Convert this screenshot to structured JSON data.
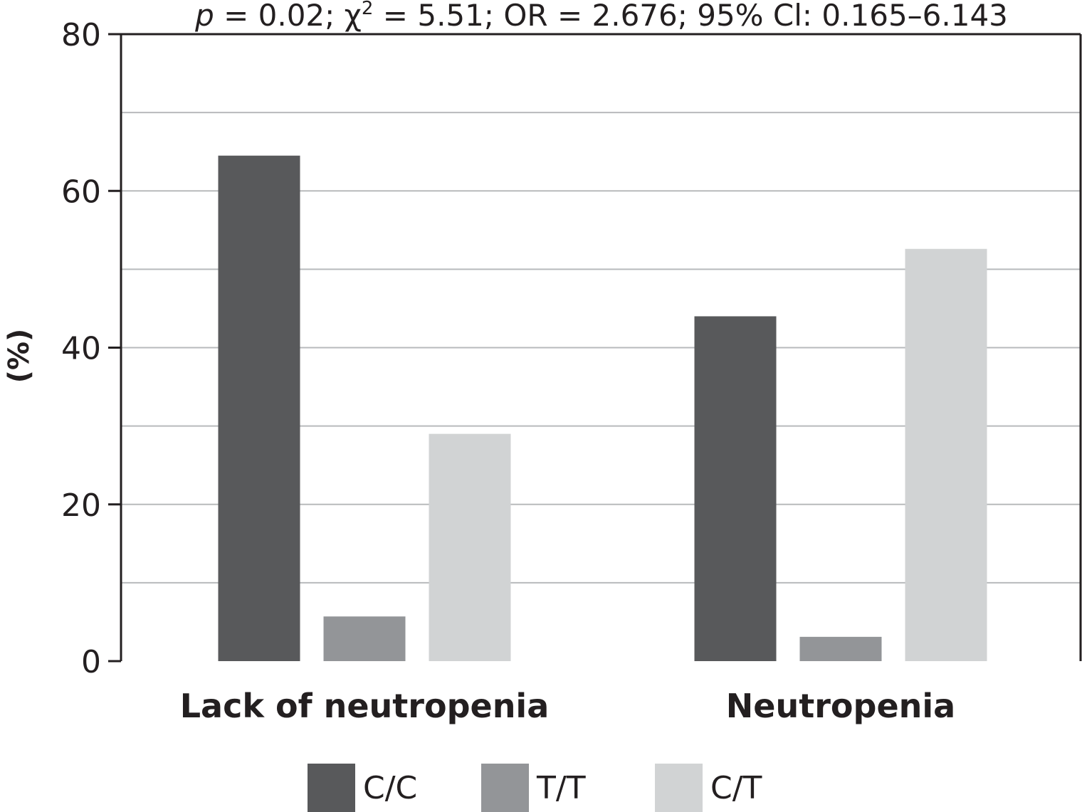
{
  "chart_data": {
    "type": "bar",
    "title": "",
    "stats_annotation": {
      "p_symbol": "p",
      "rest": " = 0.02; χ",
      "chi_sup": "2",
      "tail": " = 5.51; OR = 2.676; 95% Cl: 0.165–6.143"
    },
    "ylabel": "(%)",
    "xlabel": "",
    "ylim": [
      0,
      80
    ],
    "yticks": [
      0,
      20,
      40,
      60,
      80
    ],
    "grid": true,
    "legend_position": "bottom",
    "categories": [
      "Lack of neutropenia",
      "Neutropenia"
    ],
    "series": [
      {
        "name": "C/C",
        "color": "#58595b",
        "values": [
          64.5,
          44
        ]
      },
      {
        "name": "T/T",
        "color": "#939598",
        "values": [
          5.7,
          3.1
        ]
      },
      {
        "name": "C/T",
        "color": "#d1d3d4",
        "values": [
          29,
          52.6
        ]
      }
    ]
  }
}
